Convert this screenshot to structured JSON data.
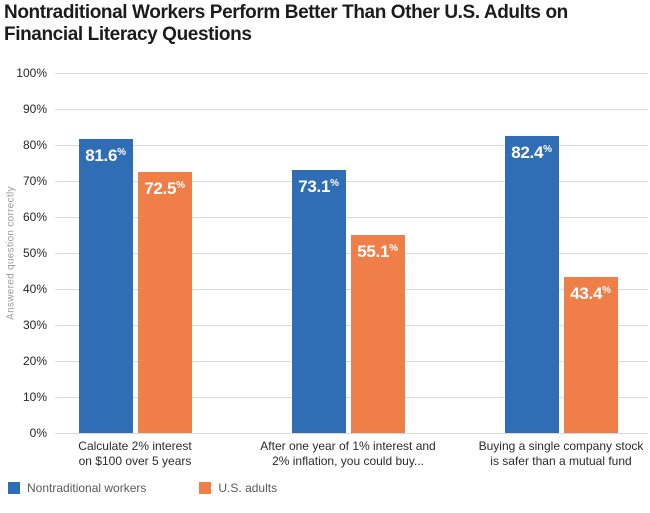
{
  "title": "Nontraditional Workers Perform Better Than Other U.S. Adults on\nFinancial Literacy Questions",
  "chart_data": {
    "type": "bar",
    "categories": [
      "Calculate 2% interest\non $100 over 5 years",
      "After one year of 1% interest and\n2% inflation, you could buy...",
      "Buying a single company stock\nis safer than a mutual fund"
    ],
    "series": [
      {
        "name": "Nontraditional workers",
        "color": "#2f6db4",
        "values": [
          81.6,
          73.1,
          82.4
        ]
      },
      {
        "name": "U.S. adults",
        "color": "#f07e49",
        "values": [
          72.5,
          55.1,
          43.4
        ]
      }
    ],
    "value_labels": [
      [
        "81.6",
        "73.1",
        "82.4"
      ],
      [
        "72.5",
        "55.1",
        "43.4"
      ]
    ],
    "value_suffix": "%",
    "title": "Nontraditional Workers Perform Better Than Other U.S. Adults on Financial Literacy Questions",
    "xlabel": "",
    "ylabel": "Answered question correctly",
    "ylim": [
      0,
      100
    ],
    "yticks": [
      "0%",
      "10%",
      "20%",
      "30%",
      "40%",
      "50%",
      "60%",
      "70%",
      "80%",
      "90%",
      "100%"
    ],
    "grid": true,
    "legend_position": "bottom-left",
    "colors": {
      "grid": "#d9d9d9",
      "tick_text": "#262626",
      "axis_title": "#9b9b9b"
    }
  }
}
